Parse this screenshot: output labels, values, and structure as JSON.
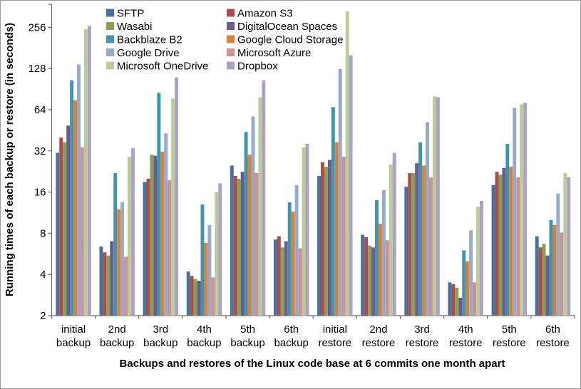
{
  "chart_data": {
    "type": "bar",
    "title": "",
    "xlabel": "Backups and restores of the Linux code base at 6 commits one month apart",
    "ylabel": "Running times of each backup or restore (in seconds)",
    "y_scale": "log2",
    "ylim": [
      1.7,
      380
    ],
    "y_ticks": [
      2,
      4,
      8,
      16,
      32,
      64,
      128,
      256
    ],
    "grid": false,
    "legend_position": "top",
    "legend_columns": 2,
    "categories": [
      "initial backup",
      "2nd backup",
      "3rd backup",
      "4th backup",
      "5th backup",
      "6th backup",
      "initial restore",
      "2nd restore",
      "3rd restore",
      "4th restore",
      "5th restore",
      "6th restore"
    ],
    "series": [
      {
        "name": "SFTP",
        "color": "#4572A4",
        "values": [
          31,
          6.4,
          19,
          4.2,
          25,
          7.2,
          21,
          7.8,
          17.5,
          3.5,
          18,
          7.6
        ]
      },
      {
        "name": "Amazon S3",
        "color": "#AE4C4A",
        "values": [
          40,
          5.8,
          20,
          3.9,
          21,
          7.6,
          26.5,
          7.5,
          22,
          3.4,
          22.5,
          6.3
        ]
      },
      {
        "name": "Wasabi",
        "color": "#87A14F",
        "values": [
          37,
          5.5,
          30,
          3.7,
          20,
          6.3,
          24.5,
          6.5,
          22,
          3.2,
          21.5,
          6.7
        ]
      },
      {
        "name": "DigitalOcean Spaces",
        "color": "#6C5A97",
        "values": [
          49,
          7,
          29.5,
          3.6,
          22.5,
          7,
          27.5,
          6.3,
          26,
          2.7,
          24,
          5.5
        ]
      },
      {
        "name": "Backblaze B2",
        "color": "#3E96AE",
        "values": [
          105,
          22,
          85,
          13,
          44,
          13.5,
          67,
          14,
          37,
          6,
          36,
          10
        ]
      },
      {
        "name": "Google Cloud Storage",
        "color": "#DA8137",
        "values": [
          75,
          12,
          31.5,
          6.8,
          30,
          11.5,
          37,
          9.4,
          25,
          5,
          24.5,
          9.2
        ]
      },
      {
        "name": "Google Drive",
        "color": "#94AACF",
        "values": [
          137,
          13.5,
          43,
          9.2,
          57,
          18,
          127,
          16.5,
          52,
          8.4,
          66,
          15.6
        ]
      },
      {
        "name": "Microsoft Azure",
        "color": "#D09290",
        "values": [
          34,
          5.4,
          19.5,
          3.8,
          22,
          6.2,
          29,
          7.1,
          20.5,
          3.5,
          20.5,
          8.1
        ]
      },
      {
        "name": "Microsoft OneDrive",
        "color": "#BACD96",
        "values": [
          248,
          29,
          77,
          16,
          79,
          34,
          335,
          25.5,
          80,
          12.5,
          70,
          22
        ]
      },
      {
        "name": "Dropbox",
        "color": "#ADA1C9",
        "values": [
          262,
          33.5,
          110,
          18.5,
          105,
          36,
          160,
          31,
          79,
          13.8,
          72,
          20.6
        ]
      }
    ],
    "legend_column1": [
      "SFTP",
      "Wasabi",
      "Backblaze B2",
      "Google Drive",
      "Microsoft OneDrive"
    ],
    "legend_column2": [
      "Amazon S3",
      "DigitalOcean Spaces",
      "Google Cloud Storage",
      "Microsoft Azure",
      "Dropbox"
    ]
  },
  "style": {
    "axis_color": "#6a6a6a",
    "text_color": "#000000",
    "background": "#ffffff"
  }
}
